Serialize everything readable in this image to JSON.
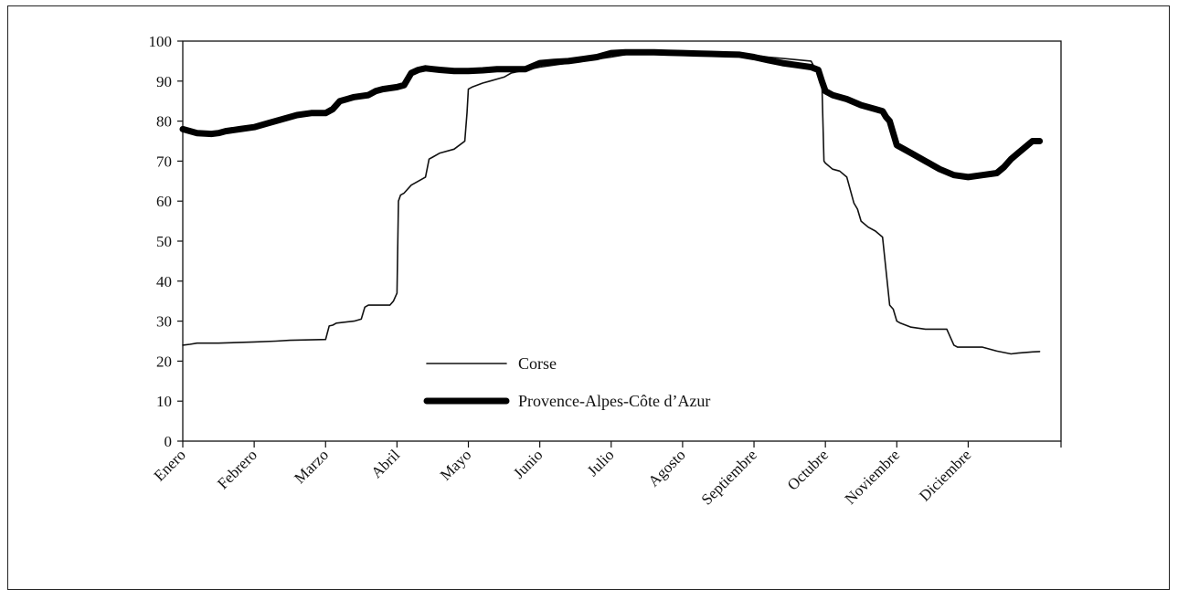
{
  "chart_data": {
    "type": "line",
    "title": "",
    "xlabel": "",
    "ylabel": "",
    "ylim": [
      0,
      100
    ],
    "yticks": [
      0,
      10,
      20,
      30,
      40,
      50,
      60,
      70,
      80,
      90,
      100
    ],
    "xlim": [
      0,
      12.3
    ],
    "categories": [
      "Enero",
      "Febrero",
      "Marzo",
      "Abril",
      "Mayo",
      "Junio",
      "Julio",
      "Agosto",
      "Septiembre",
      "Octubre",
      "Noviembre",
      "Diciembre"
    ],
    "grid": false,
    "legend_position": "bottom-center",
    "series": [
      {
        "name": "Corse",
        "color": "#111111",
        "style": "thin",
        "x": [
          0.0,
          0.1,
          0.2,
          0.5,
          1.0,
          1.3,
          1.5,
          2.0,
          2.05,
          2.1,
          2.15,
          2.4,
          2.5,
          2.55,
          2.6,
          2.8,
          2.9,
          2.95,
          3.0,
          3.02,
          3.05,
          3.1,
          3.2,
          3.3,
          3.4,
          3.45,
          3.5,
          3.6,
          3.8,
          3.95,
          3.98,
          4.0,
          4.05,
          4.2,
          4.3,
          4.5,
          4.55,
          4.6,
          5.0,
          6.0,
          6.5,
          7.0,
          7.5,
          8.0,
          8.2,
          8.5,
          8.8,
          8.95,
          8.98,
          9.0,
          9.1,
          9.2,
          9.3,
          9.4,
          9.45,
          9.5,
          9.6,
          9.7,
          9.8,
          9.9,
          9.95,
          10.0,
          10.05,
          10.2,
          10.4,
          10.7,
          10.8,
          10.85,
          11.2,
          11.4,
          11.6,
          11.7,
          11.9,
          12.0
        ],
        "y": [
          24,
          24.2,
          24.5,
          24.5,
          24.8,
          25.0,
          25.2,
          25.4,
          28.8,
          29.0,
          29.5,
          30.0,
          30.5,
          33.5,
          34.0,
          34.0,
          34.0,
          35.0,
          37.0,
          60.0,
          61.5,
          62.0,
          64.0,
          65.0,
          66.0,
          70.5,
          71.0,
          72.0,
          73.0,
          75.0,
          82.0,
          88.0,
          88.5,
          89.5,
          90.0,
          91.0,
          91.5,
          92.0,
          93.5,
          96.0,
          97.5,
          97.0,
          97.0,
          96.5,
          96.0,
          95.5,
          95.0,
          90.0,
          70.0,
          69.5,
          68.0,
          67.5,
          66.0,
          59.5,
          58.0,
          55.0,
          53.5,
          52.5,
          51.0,
          34.0,
          33.0,
          30.0,
          29.5,
          28.5,
          28.0,
          28.0,
          24.0,
          23.5,
          23.5,
          22.5,
          21.8,
          22.0,
          22.3,
          22.4
        ]
      },
      {
        "name": "Provence-Alpes-Côte d’Azur",
        "color": "#000000",
        "style": "thick",
        "x": [
          0.0,
          0.2,
          0.4,
          0.5,
          0.6,
          0.8,
          1.0,
          1.2,
          1.4,
          1.6,
          1.8,
          2.0,
          2.1,
          2.2,
          2.4,
          2.6,
          2.7,
          2.8,
          3.0,
          3.1,
          3.2,
          3.3,
          3.4,
          3.5,
          3.6,
          3.8,
          4.0,
          4.2,
          4.4,
          4.6,
          4.8,
          5.0,
          5.2,
          5.4,
          5.6,
          5.8,
          6.0,
          6.2,
          6.4,
          6.6,
          6.8,
          7.0,
          7.2,
          7.4,
          7.6,
          7.8,
          8.0,
          8.2,
          8.4,
          8.6,
          8.8,
          8.9,
          8.95,
          9.0,
          9.1,
          9.3,
          9.5,
          9.7,
          9.8,
          9.85,
          9.9,
          10.0,
          10.2,
          10.4,
          10.6,
          10.8,
          11.0,
          11.2,
          11.4,
          11.5,
          11.6,
          11.7,
          11.8,
          11.9,
          12.0
        ],
        "y": [
          78.0,
          77.0,
          76.8,
          77.0,
          77.5,
          78.0,
          78.5,
          79.5,
          80.5,
          81.5,
          82.0,
          82.0,
          83.0,
          85.0,
          86.0,
          86.5,
          87.5,
          88.0,
          88.5,
          89.0,
          92.0,
          92.8,
          93.2,
          93.0,
          92.8,
          92.5,
          92.5,
          92.7,
          93.0,
          93.0,
          93.0,
          94.5,
          94.8,
          95.0,
          95.5,
          96.0,
          97.0,
          97.2,
          97.2,
          97.2,
          97.1,
          97.0,
          96.9,
          96.8,
          96.7,
          96.6,
          96.0,
          95.2,
          94.5,
          94.0,
          93.5,
          92.8,
          90.0,
          87.5,
          86.5,
          85.5,
          84.0,
          83.0,
          82.5,
          81.0,
          80.0,
          74.0,
          72.0,
          70.0,
          68.0,
          66.5,
          66.0,
          66.5,
          67.0,
          68.5,
          70.5,
          72.0,
          73.5,
          75.0,
          75.0
        ]
      }
    ]
  }
}
